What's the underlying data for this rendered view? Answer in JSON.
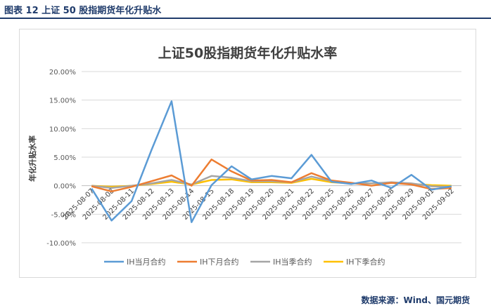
{
  "figure": {
    "caption": "图表 12  上证 50 股指期货年化升贴水",
    "source": "数据来源：Wind、国元期货"
  },
  "chart_data": {
    "type": "line",
    "title": "上证50股指期货年化升贴水率",
    "xlabel": "",
    "ylabel": "年化升贴水率",
    "ylim": [
      -0.1,
      0.2
    ],
    "yticks": [
      -0.1,
      -0.05,
      0.0,
      0.05,
      0.1,
      0.15,
      0.2
    ],
    "ytick_labels": [
      "-10.00%",
      "-5.00%",
      "0.00%",
      "5.00%",
      "10.00%",
      "15.00%",
      "20.00%"
    ],
    "categories": [
      "2025-08-07",
      "2025-08-08",
      "2025-08-11",
      "2025-08-12",
      "2025-08-13",
      "2025-08-14",
      "2025-08-15",
      "2025-08-18",
      "2025-08-19",
      "2025-08-20",
      "2025-08-21",
      "2025-08-22",
      "2025-08-25",
      "2025-08-26",
      "2025-08-27",
      "2025-08-28",
      "2025-08-29",
      "2025-09-01",
      "2025-09-02"
    ],
    "legend_position": "bottom",
    "series": [
      {
        "name": "IH当月合约",
        "color": "#5b9bd5",
        "values": [
          -0.005,
          -0.061,
          -0.027,
          0.063,
          0.148,
          -0.064,
          0.001,
          0.034,
          0.011,
          0.017,
          0.013,
          0.054,
          0.007,
          0.003,
          0.009,
          -0.004,
          0.019,
          -0.007,
          -0.001
        ]
      },
      {
        "name": "IH下月合约",
        "color": "#ed7d31",
        "values": [
          -0.001,
          -0.01,
          -0.002,
          0.008,
          0.018,
          0.0,
          0.046,
          0.025,
          0.009,
          0.01,
          0.006,
          0.022,
          0.009,
          0.005,
          0.0,
          0.005,
          0.002,
          -0.006,
          -0.004
        ]
      },
      {
        "name": "IH当季合约",
        "color": "#a5a5a5",
        "values": [
          0.0,
          -0.004,
          0.0,
          0.004,
          0.01,
          0.002,
          0.017,
          0.014,
          0.008,
          0.008,
          0.006,
          0.016,
          0.008,
          0.004,
          0.004,
          0.006,
          0.004,
          -0.001,
          -0.002
        ]
      },
      {
        "name": "IH下季合约",
        "color": "#ffc000",
        "values": [
          0.0,
          -0.002,
          0.0,
          0.003,
          0.007,
          0.002,
          0.01,
          0.011,
          0.006,
          0.006,
          0.005,
          0.012,
          0.006,
          0.004,
          0.004,
          0.005,
          0.003,
          0.001,
          0.0
        ]
      }
    ]
  }
}
